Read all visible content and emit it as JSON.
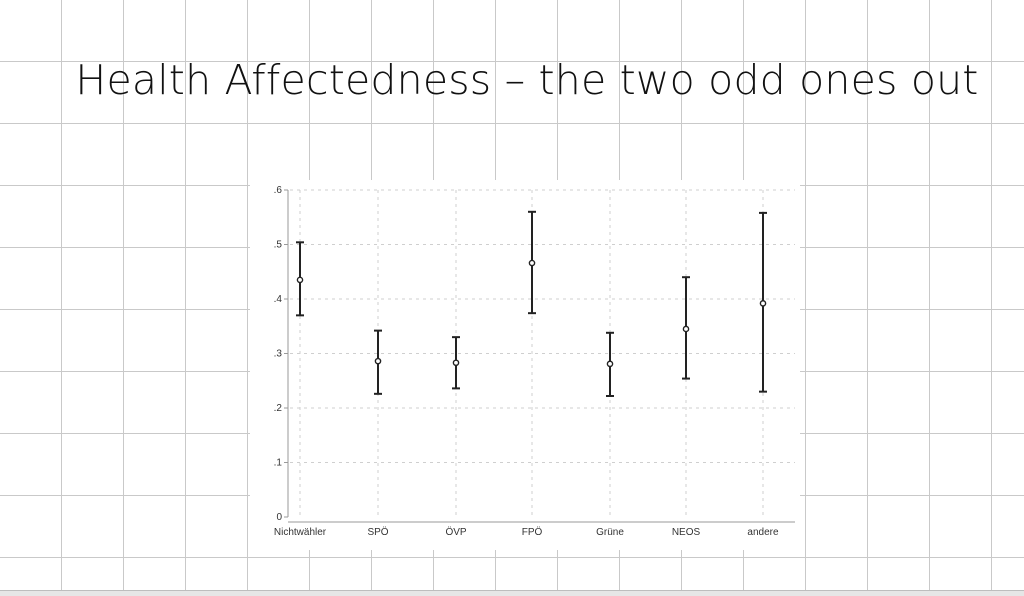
{
  "slide": {
    "title": "Health Affectedness – the two odd ones out"
  },
  "chart_data": {
    "type": "errorbar",
    "categories": [
      "Nichtwähler",
      "SPÖ",
      "ÖVP",
      "FPÖ",
      "Grüne",
      "NEOS",
      "andere"
    ],
    "estimates": [
      0.435,
      0.286,
      0.283,
      0.466,
      0.281,
      0.345,
      0.392
    ],
    "ci_lower": [
      0.37,
      0.226,
      0.236,
      0.374,
      0.222,
      0.254,
      0.23
    ],
    "ci_upper": [
      0.504,
      0.342,
      0.33,
      0.56,
      0.338,
      0.44,
      0.558
    ],
    "yticks": [
      0,
      0.1,
      0.2,
      0.3,
      0.4,
      0.5,
      0.6
    ],
    "ytick_labels": [
      "0",
      ".1",
      ".2",
      ".3",
      ".4",
      ".5",
      ".6"
    ],
    "ylim": [
      0,
      0.6
    ],
    "grid": true,
    "xlabel": "",
    "ylabel": "",
    "colors": {
      "marks": "#222222",
      "axis": "#9a9a9a",
      "grid": "#cfcfcf"
    }
  }
}
